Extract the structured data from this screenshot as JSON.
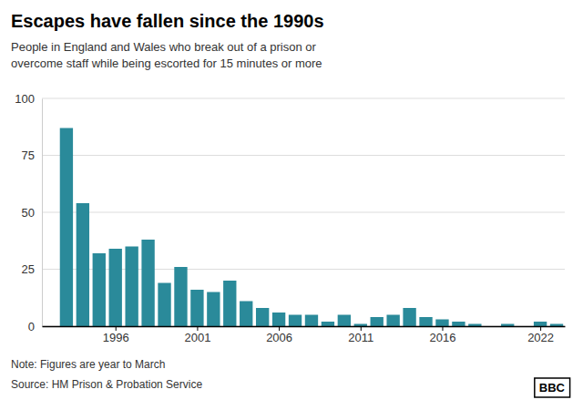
{
  "chart_data": {
    "type": "bar",
    "title": "Escapes have fallen since the 1990s",
    "subtitle": "People in England and Wales who break out of a prison or\novercome staff while being escorted for 15 minutes or more",
    "annotations": [
      "Note: Figures are year to March",
      "Source: HM Prison & Probation Service",
      "BBC"
    ],
    "x": [
      1993,
      1994,
      1995,
      1996,
      1997,
      1998,
      1999,
      2000,
      2001,
      2002,
      2003,
      2004,
      2005,
      2006,
      2007,
      2008,
      2009,
      2010,
      2011,
      2012,
      2013,
      2014,
      2015,
      2016,
      2017,
      2018,
      2019,
      2020,
      2021,
      2022,
      2023
    ],
    "values": [
      87,
      54,
      32,
      34,
      35,
      38,
      19,
      26,
      16,
      15,
      20,
      11,
      8,
      6,
      5,
      5,
      2,
      5,
      1,
      4,
      5,
      8,
      4,
      3,
      2,
      1,
      0,
      1,
      0,
      2,
      1
    ],
    "color": "#2a8a9a",
    "xlim": [
      1991.5,
      2023.5
    ],
    "xticks": [
      1996,
      2001,
      2006,
      2011,
      2016,
      2022
    ],
    "ylim": [
      0,
      100
    ],
    "yticks": [
      0,
      25,
      50,
      75,
      100
    ],
    "grid": true
  }
}
